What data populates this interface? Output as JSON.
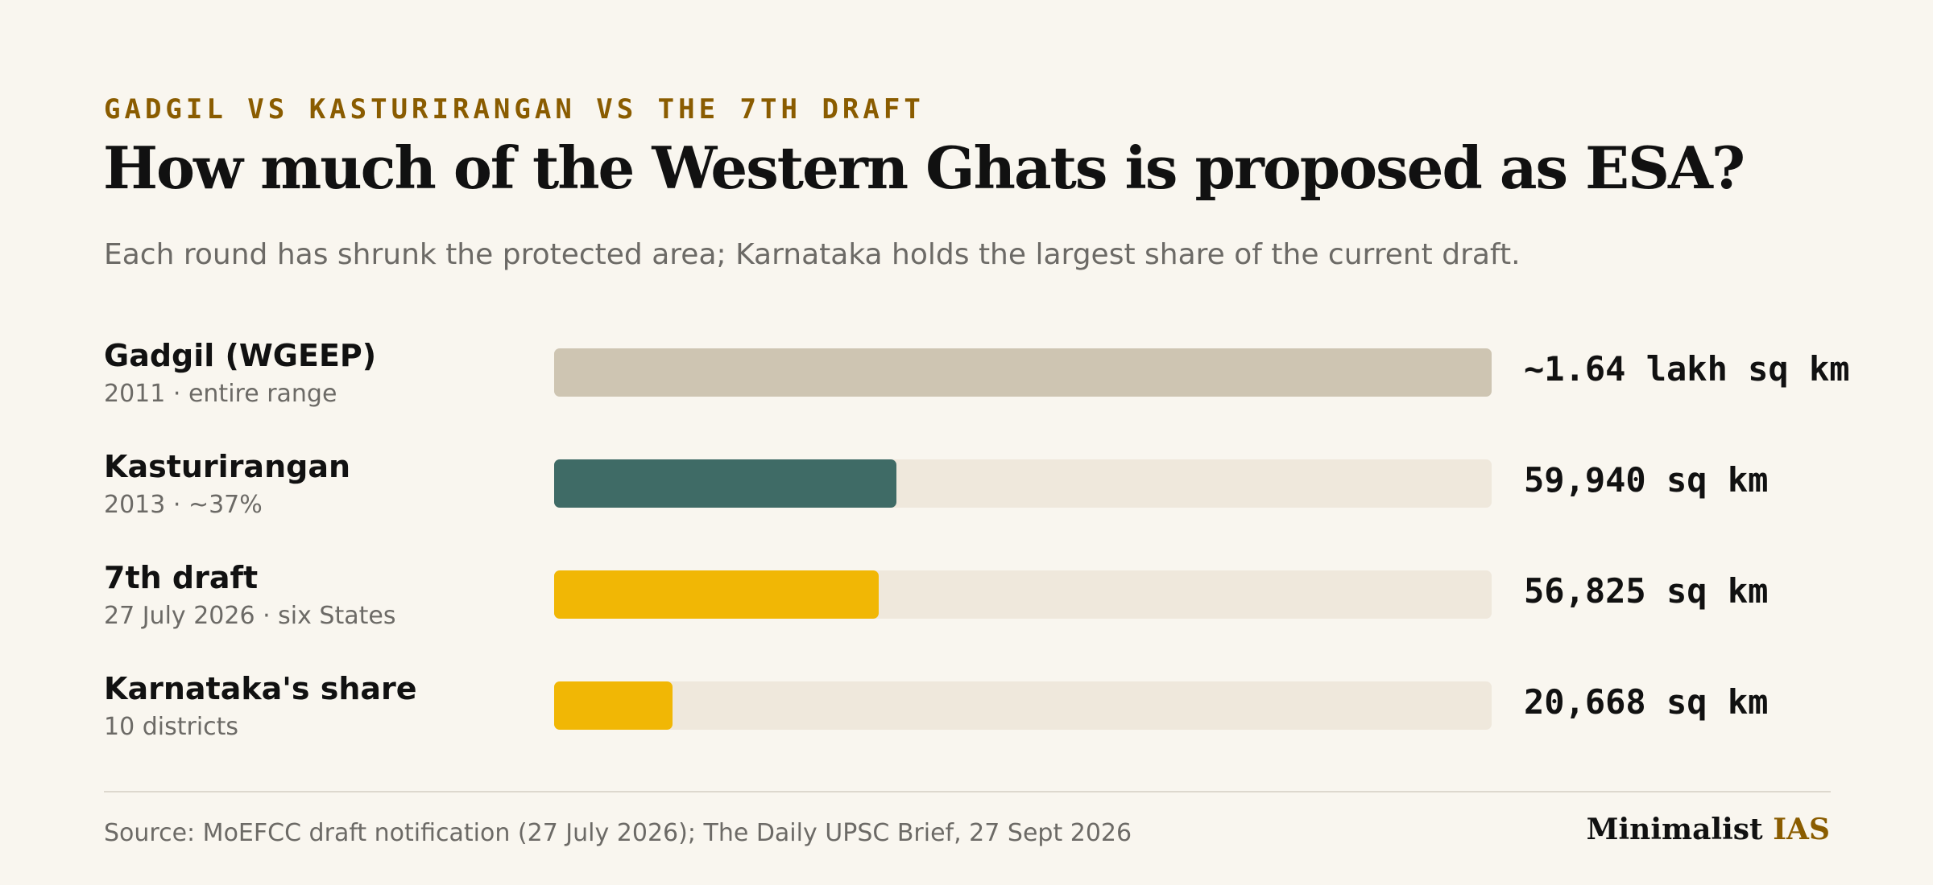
{
  "header": {
    "kicker": "GADGIL VS KASTURIRANGAN VS THE 7TH DRAFT",
    "title": "How much of the Western Ghats is proposed as ESA?",
    "subtitle": "Each round has shrunk the protected area; Karnataka holds the largest share of the current draft."
  },
  "chart_data": {
    "type": "bar",
    "orientation": "horizontal",
    "title": "How much of the Western Ghats is proposed as ESA?",
    "xlabel": "",
    "ylabel": "",
    "xlim": [
      0,
      164000
    ],
    "unit": "sq km",
    "grid": false,
    "legend": "none",
    "categories": [
      "Gadgil (WGEEP)",
      "Kasturirangan",
      "7th draft",
      "Karnataka's share"
    ],
    "values": [
      164000,
      59940,
      56825,
      20668
    ],
    "rows": [
      {
        "label": "Gadgil (WGEEP)",
        "note": "2011 · entire range",
        "value": 164000,
        "value_label": "~1.64 lakh sq km",
        "color": "#cec5b2"
      },
      {
        "label": "Kasturirangan",
        "note": "2013 · ~37%",
        "value": 59940,
        "value_label": "59,940 sq km",
        "color": "#3f6b66"
      },
      {
        "label": "7th draft",
        "note": "27 July 2026 · six States",
        "value": 56825,
        "value_label": "56,825 sq km",
        "color": "#f1b705"
      },
      {
        "label": "Karnataka's share",
        "note": "10 districts",
        "value": 20668,
        "value_label": "20,668 sq km",
        "color": "#f1b705"
      }
    ],
    "track_color": "#efe8dc"
  },
  "footer": {
    "source": "Source: MoEFCC draft notification (27 July 2026); The Daily UPSC Brief, 27 Sept 2026",
    "brand_main": "Minimalist",
    "brand_accent": "IAS"
  }
}
